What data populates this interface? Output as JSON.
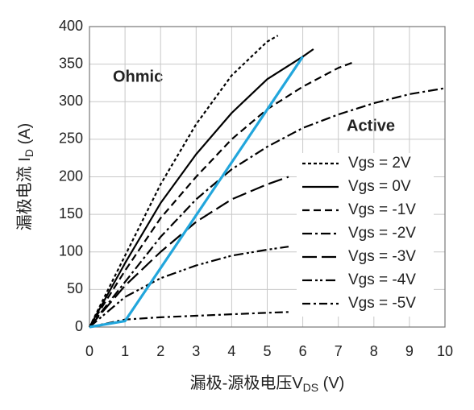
{
  "chart_data": {
    "type": "line",
    "x_label": {
      "text": "漏极-源极电压V",
      "sub": "DS",
      "tail": " (V)"
    },
    "y_label": {
      "text": "漏极电流 I",
      "sub": "D",
      "tail": " (A)"
    },
    "label_color": "#f07d2a",
    "y_label_color": "#2aa0c0",
    "annotations": [
      "Ohmic",
      "Active"
    ],
    "xlim": [
      0,
      10
    ],
    "xticks": [
      0,
      1,
      2,
      3,
      4,
      5,
      6,
      7,
      8,
      9,
      10
    ],
    "ylim": [
      0,
      400
    ],
    "yticks": [
      0,
      50,
      100,
      150,
      200,
      250,
      300,
      350,
      400
    ],
    "grid": true,
    "legend": "right",
    "series": [
      {
        "name": "Vgs = 2V",
        "color": "#000000",
        "dash": "4,3",
        "x": [
          0,
          1,
          2,
          3,
          4,
          5,
          5.3
        ],
        "values": [
          0,
          95,
          190,
          270,
          335,
          380,
          388
        ]
      },
      {
        "name": "Vgs = 0V",
        "color": "#000000",
        "dash": "none",
        "x": [
          0,
          1,
          2,
          3,
          4,
          5,
          6,
          6.3
        ],
        "values": [
          0,
          85,
          165,
          230,
          285,
          330,
          360,
          370
        ]
      },
      {
        "name": "Vgs = -1V",
        "color": "#000000",
        "dash": "9,5",
        "x": [
          0,
          1,
          2,
          3,
          4,
          5,
          6,
          7,
          7.4
        ],
        "values": [
          0,
          75,
          145,
          200,
          250,
          290,
          320,
          345,
          352
        ]
      },
      {
        "name": "Vgs = -2V",
        "color": "#000000",
        "dash": "12,4,3,4",
        "x": [
          0,
          1,
          2,
          3,
          4,
          5,
          6,
          7,
          8,
          9,
          10
        ],
        "values": [
          0,
          60,
          120,
          170,
          210,
          240,
          265,
          283,
          298,
          310,
          318
        ]
      },
      {
        "name": "Vgs = -3V",
        "color": "#000000",
        "dash": "18,6",
        "x": [
          0,
          1,
          2,
          3,
          4,
          5,
          5.6
        ],
        "values": [
          0,
          55,
          100,
          140,
          170,
          190,
          200
        ]
      },
      {
        "name": "Vgs = -4V",
        "color": "#000000",
        "dash": "12,4,3,3,3,4",
        "x": [
          0,
          1,
          2,
          3,
          4,
          5,
          5.6
        ],
        "values": [
          0,
          40,
          65,
          82,
          95,
          103,
          107
        ]
      },
      {
        "name": "Vgs = -5V",
        "color": "#000000",
        "dash": "10,4,3,4",
        "x": [
          0,
          1,
          2,
          3,
          4,
          5,
          5.6
        ],
        "values": [
          0,
          10,
          13,
          15,
          17,
          19,
          20
        ]
      },
      {
        "color": "#22a6dc",
        "dash": "none",
        "x": [
          0,
          1,
          6
        ],
        "values": [
          0,
          8,
          360
        ]
      }
    ]
  }
}
